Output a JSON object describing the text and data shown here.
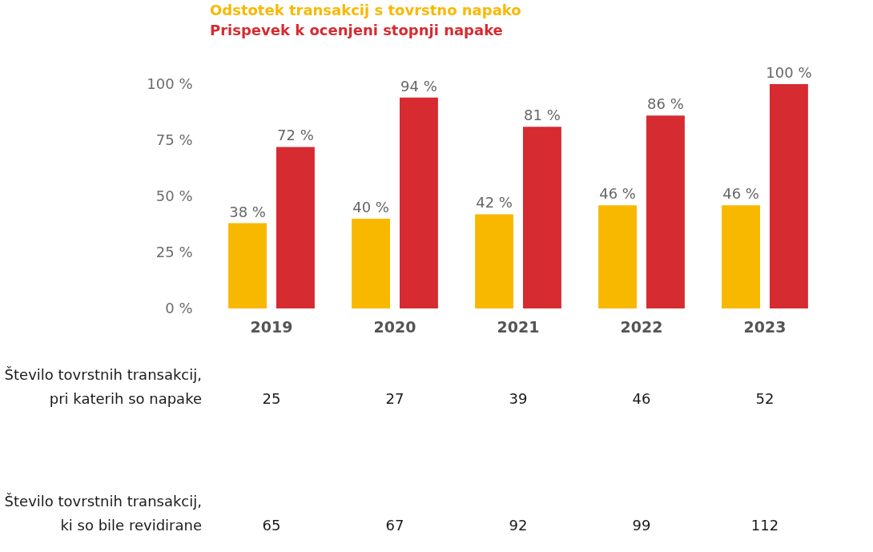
{
  "chart_data": [
    {
      "type": "bar",
      "categories": [
        "2019",
        "2020",
        "2021",
        "2022",
        "2023"
      ],
      "series": [
        {
          "name": "Odstotek transakcij s tovrstno napako",
          "color": "#f9b800",
          "values": [
            38,
            40,
            42,
            46,
            46
          ],
          "value_labels": [
            "38 %",
            "40 %",
            "42 %",
            "46 %",
            "46 %"
          ]
        },
        {
          "name": "Prispevek k ocenjeni stopnji napake",
          "color": "#d62b31",
          "values": [
            72,
            94,
            81,
            86,
            100
          ],
          "value_labels": [
            "72 %",
            "94 %",
            "81 %",
            "86 %",
            "100 %"
          ]
        }
      ],
      "ylim": [
        0,
        100
      ],
      "yticks": [
        {
          "value": 0,
          "label": "0 %"
        },
        {
          "value": 25,
          "label": "25 %"
        },
        {
          "value": 50,
          "label": "50 %"
        },
        {
          "value": 75,
          "label": "75 %"
        },
        {
          "value": 100,
          "label": "100 %"
        }
      ],
      "grid": false,
      "legend": "top left"
    },
    {
      "type": "heatmap",
      "categories": [
        "2019",
        "2020",
        "2021",
        "2022",
        "2023"
      ],
      "y_categories": [
        "Število tovrstnih transakcij,\npri katerih so napake",
        "Število tovrstnih transakcij,\nki so bile revidirane"
      ],
      "cells": [
        [
          25,
          27,
          39,
          46,
          52
        ],
        [
          65,
          67,
          92,
          99,
          112
        ]
      ],
      "tick_labels": "y",
      "data_labels": true
    }
  ]
}
